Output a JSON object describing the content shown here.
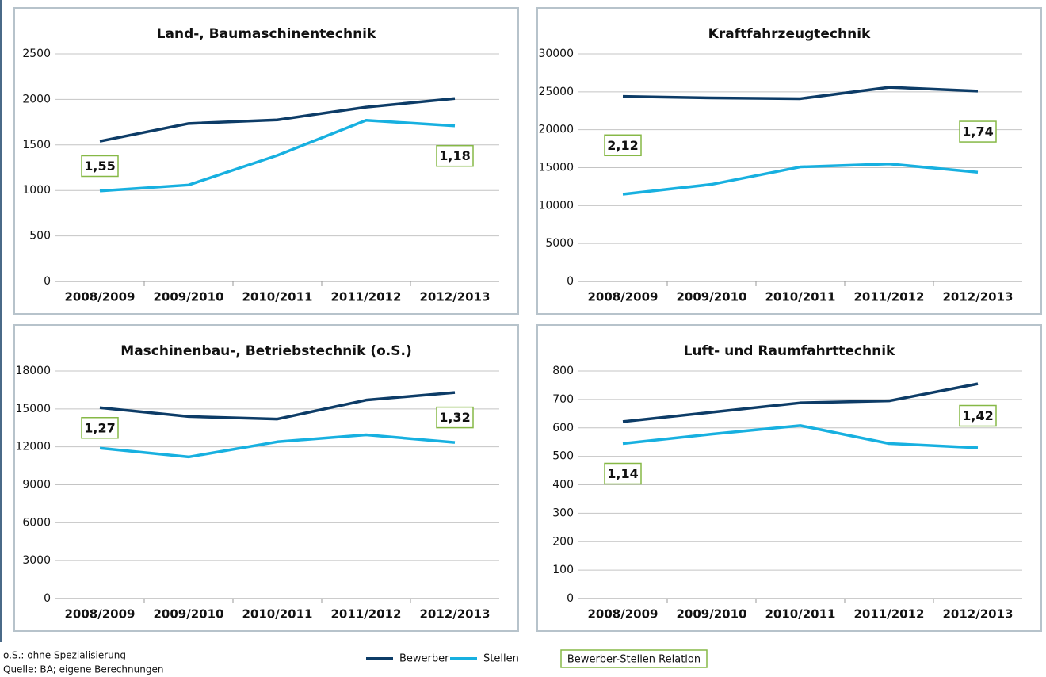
{
  "chart_data": [
    {
      "type": "line",
      "title": "Land-, Baumaschinentechnik",
      "categories": [
        "2008/2009",
        "2009/2010",
        "2010/2011",
        "2011/2012",
        "2012/2013"
      ],
      "series": [
        {
          "values": [
            1540,
            1735,
            1775,
            1915,
            2010
          ]
        },
        {
          "values": [
            995,
            1060,
            1385,
            1770,
            1710
          ]
        }
      ],
      "ylim": [
        0,
        2500
      ],
      "yticks": [
        0,
        500,
        1000,
        1500,
        2000,
        2500
      ],
      "grid": true,
      "annotations": [
        {
          "value": 1.55,
          "label": "1,55"
        },
        {
          "value": 1.18,
          "label": "1,18"
        }
      ]
    },
    {
      "type": "line",
      "title": "Kraftfahrzeugtechnik",
      "categories": [
        "2008/2009",
        "2009/2010",
        "2010/2011",
        "2011/2012",
        "2012/2013"
      ],
      "series": [
        {
          "values": [
            24400,
            24200,
            24100,
            25600,
            25100
          ]
        },
        {
          "values": [
            11500,
            12800,
            15100,
            15500,
            14400
          ]
        }
      ],
      "ylim": [
        0,
        30000
      ],
      "yticks": [
        0,
        5000,
        10000,
        15000,
        20000,
        25000,
        30000
      ],
      "grid": true,
      "annotations": [
        {
          "value": 2.12,
          "label": "2,12"
        },
        {
          "value": 1.74,
          "label": "1,74"
        }
      ]
    },
    {
      "type": "line",
      "title": "Maschinenbau-, Betriebstechnik (o.S.)",
      "categories": [
        "2008/2009",
        "2009/2010",
        "2010/2011",
        "2011/2012",
        "2012/2013"
      ],
      "series": [
        {
          "values": [
            15100,
            14400,
            14200,
            15700,
            16300
          ]
        },
        {
          "values": [
            11900,
            11200,
            12400,
            12950,
            12350
          ]
        }
      ],
      "ylim": [
        0,
        18000
      ],
      "yticks": [
        0,
        3000,
        6000,
        9000,
        12000,
        15000,
        18000
      ],
      "grid": true,
      "annotations": [
        {
          "value": 1.27,
          "label": "1,27"
        },
        {
          "value": 1.32,
          "label": "1,32"
        }
      ]
    },
    {
      "type": "line",
      "title": "Luft- und Raumfahrttechnik",
      "categories": [
        "2008/2009",
        "2009/2010",
        "2010/2011",
        "2011/2012",
        "2012/2013"
      ],
      "series": [
        {
          "values": [
            622,
            655,
            688,
            695,
            755
          ]
        },
        {
          "values": [
            545,
            578,
            608,
            545,
            530
          ]
        }
      ],
      "ylim": [
        0,
        800
      ],
      "yticks": [
        0,
        100,
        200,
        300,
        400,
        500,
        600,
        700,
        800
      ],
      "grid": true,
      "annotations": [
        {
          "value": 1.14,
          "label": "1,14"
        },
        {
          "value": 1.42,
          "label": "1,42"
        }
      ]
    }
  ],
  "legend": {
    "series": [
      {
        "name": "Bewerber",
        "color": "#0d3c67"
      },
      {
        "name": "Stellen",
        "color": "#17b0e0"
      }
    ],
    "relation_label": "Bewerber-Stellen Relation"
  },
  "notes": [
    "o.S.: ohne Spezialisierung",
    "Quelle: BA; eigene Berechnungen"
  ]
}
